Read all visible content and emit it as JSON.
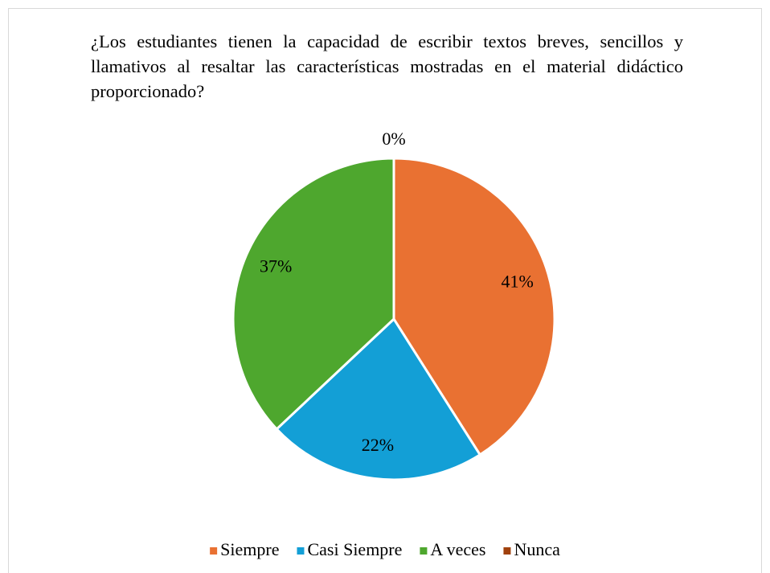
{
  "chart_data": {
    "type": "pie",
    "title": "¿Los estudiantes tienen la capacidad de escribir textos breves, sencillos y llamativos al resaltar las características mostradas en el material didáctico proporcionado?",
    "categories": [
      "Siempre",
      "Casi Siempre",
      "A veces",
      "Nunca"
    ],
    "values": [
      41,
      22,
      37,
      0
    ],
    "value_labels": [
      "41%",
      "22%",
      "37%",
      "0%"
    ],
    "colors": [
      "#E97132",
      "#139FD6",
      "#4EA72E",
      "#A0410D"
    ],
    "legend": "bottom"
  }
}
